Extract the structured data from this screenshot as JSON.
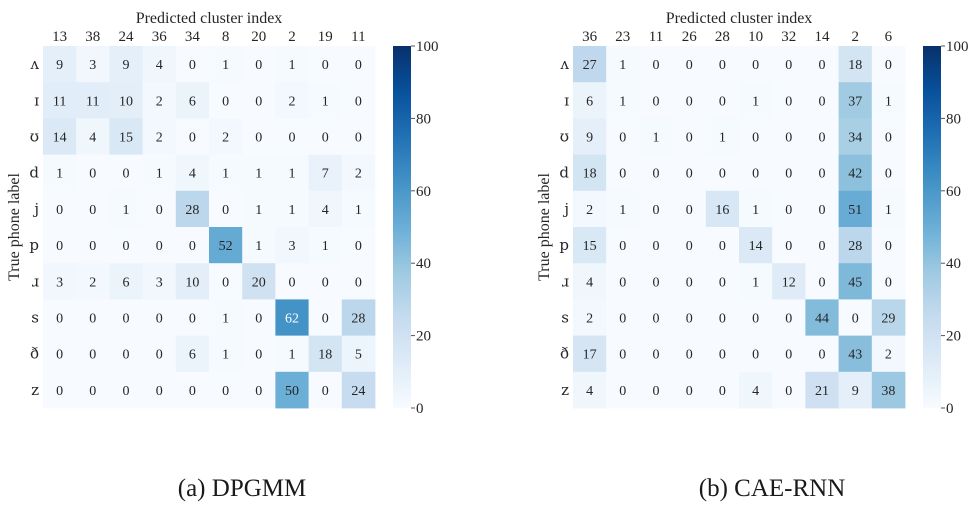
{
  "chart_data": [
    {
      "type": "heatmap",
      "caption": "(a) DPGMM",
      "xlabel": "Predicted cluster index",
      "ylabel": "True phone label",
      "x_categories": [
        "13",
        "38",
        "24",
        "36",
        "34",
        "8",
        "20",
        "2",
        "19",
        "11"
      ],
      "y_categories": [
        "ʌ",
        "ɪ",
        "ʊ",
        "d",
        "j",
        "p",
        "ɹ",
        "s",
        "ð",
        "z"
      ],
      "values": [
        [
          9,
          3,
          9,
          4,
          0,
          1,
          0,
          1,
          0,
          0
        ],
        [
          11,
          11,
          10,
          2,
          6,
          0,
          0,
          2,
          1,
          0
        ],
        [
          14,
          4,
          15,
          2,
          0,
          2,
          0,
          0,
          0,
          0
        ],
        [
          1,
          0,
          0,
          1,
          4,
          1,
          1,
          1,
          7,
          2
        ],
        [
          0,
          0,
          1,
          0,
          28,
          0,
          1,
          1,
          4,
          1
        ],
        [
          0,
          0,
          0,
          0,
          0,
          52,
          1,
          3,
          1,
          0
        ],
        [
          3,
          2,
          6,
          3,
          10,
          0,
          20,
          0,
          0,
          0
        ],
        [
          0,
          0,
          0,
          0,
          0,
          1,
          0,
          62,
          0,
          28
        ],
        [
          0,
          0,
          0,
          0,
          6,
          1,
          0,
          1,
          18,
          5
        ],
        [
          0,
          0,
          0,
          0,
          0,
          0,
          0,
          50,
          0,
          24
        ]
      ],
      "colorbar": {
        "min": 0,
        "max": 100,
        "ticks": [
          "0",
          "20",
          "40",
          "60",
          "80",
          "100"
        ]
      }
    },
    {
      "type": "heatmap",
      "caption": "(b) CAE-RNN",
      "xlabel": "Predicted cluster index",
      "ylabel": "True phone label",
      "x_categories": [
        "36",
        "23",
        "11",
        "26",
        "28",
        "10",
        "32",
        "14",
        "2",
        "6"
      ],
      "y_categories": [
        "ʌ",
        "ɪ",
        "ʊ",
        "d",
        "j",
        "p",
        "ɹ",
        "s",
        "ð",
        "z"
      ],
      "values": [
        [
          27,
          1,
          0,
          0,
          0,
          0,
          0,
          0,
          18,
          0
        ],
        [
          6,
          1,
          0,
          0,
          0,
          1,
          0,
          0,
          37,
          1
        ],
        [
          9,
          0,
          1,
          0,
          1,
          0,
          0,
          0,
          34,
          0
        ],
        [
          18,
          0,
          0,
          0,
          0,
          0,
          0,
          0,
          42,
          0
        ],
        [
          2,
          1,
          0,
          0,
          16,
          1,
          0,
          0,
          51,
          1
        ],
        [
          15,
          0,
          0,
          0,
          0,
          14,
          0,
          0,
          28,
          0
        ],
        [
          4,
          0,
          0,
          0,
          0,
          1,
          12,
          0,
          45,
          0
        ],
        [
          2,
          0,
          0,
          0,
          0,
          0,
          0,
          44,
          0,
          29
        ],
        [
          17,
          0,
          0,
          0,
          0,
          0,
          0,
          0,
          43,
          2
        ],
        [
          4,
          0,
          0,
          0,
          0,
          4,
          0,
          21,
          9,
          38
        ]
      ],
      "colorbar": {
        "min": 0,
        "max": 100,
        "ticks": [
          "0",
          "20",
          "40",
          "60",
          "80",
          "100"
        ]
      }
    }
  ]
}
